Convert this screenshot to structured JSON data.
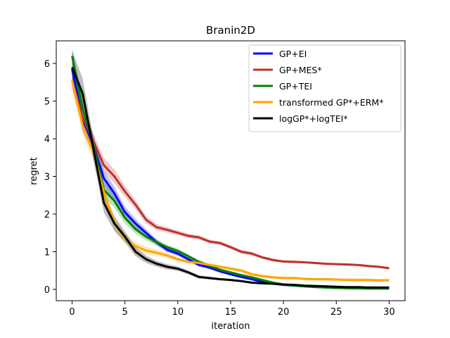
{
  "chart_data": {
    "type": "line",
    "title": "Branin2D",
    "xlabel": "iteration",
    "ylabel": "regret",
    "xlim": [
      -1.5,
      31.5
    ],
    "ylim": [
      -0.3,
      6.6
    ],
    "xticks": [
      0,
      5,
      10,
      15,
      20,
      25,
      30
    ],
    "yticks": [
      0,
      1,
      2,
      3,
      4,
      5,
      6
    ],
    "legend_position": "top-right",
    "grid": false,
    "x": [
      0,
      1,
      2,
      3,
      4,
      5,
      6,
      7,
      8,
      9,
      10,
      11,
      12,
      13,
      14,
      15,
      16,
      17,
      18,
      19,
      20,
      21,
      22,
      23,
      24,
      25,
      26,
      27,
      28,
      29,
      30
    ],
    "series": [
      {
        "name": "GP+EI",
        "color": "#0000ff",
        "values": [
          5.85,
          4.5,
          3.85,
          2.95,
          2.55,
          2.05,
          1.75,
          1.5,
          1.25,
          1.05,
          0.95,
          0.8,
          0.65,
          0.58,
          0.48,
          0.4,
          0.33,
          0.27,
          0.2,
          0.15,
          0.12,
          0.1,
          0.08,
          0.07,
          0.05,
          0.04,
          0.04,
          0.03,
          0.03,
          0.03,
          0.03
        ],
        "band": [
          0.25,
          0.3,
          0.25,
          0.2,
          0.18,
          0.15,
          0.12,
          0.1,
          0.08,
          0.07,
          0.06,
          0.05,
          0.05,
          0.04,
          0.04,
          0.03,
          0.03,
          0.03,
          0.02,
          0.02,
          0.02,
          0.02,
          0.02,
          0.02,
          0.02,
          0.01,
          0.01,
          0.01,
          0.01,
          0.01,
          0.01
        ]
      },
      {
        "name": "GP+MES*",
        "color": "#c0302d",
        "values": [
          5.55,
          4.55,
          3.95,
          3.3,
          3.0,
          2.6,
          2.25,
          1.85,
          1.65,
          1.58,
          1.5,
          1.42,
          1.38,
          1.27,
          1.23,
          1.12,
          1.0,
          0.95,
          0.85,
          0.78,
          0.74,
          0.73,
          0.72,
          0.7,
          0.68,
          0.67,
          0.66,
          0.65,
          0.62,
          0.6,
          0.56
        ],
        "band": [
          0.25,
          0.25,
          0.2,
          0.2,
          0.18,
          0.15,
          0.12,
          0.1,
          0.08,
          0.07,
          0.06,
          0.06,
          0.06,
          0.05,
          0.05,
          0.05,
          0.05,
          0.05,
          0.04,
          0.04,
          0.03,
          0.03,
          0.03,
          0.03,
          0.03,
          0.03,
          0.03,
          0.03,
          0.03,
          0.03,
          0.03
        ]
      },
      {
        "name": "GP+TEI",
        "color": "#008000",
        "values": [
          6.2,
          4.8,
          3.85,
          2.65,
          2.35,
          1.9,
          1.6,
          1.4,
          1.25,
          1.12,
          1.02,
          0.88,
          0.73,
          0.63,
          0.52,
          0.45,
          0.38,
          0.32,
          0.25,
          0.18,
          0.13,
          0.1,
          0.08,
          0.06,
          0.05,
          0.04,
          0.03,
          0.03,
          0.02,
          0.02,
          0.02
        ],
        "band": [
          0.2,
          0.25,
          0.2,
          0.2,
          0.18,
          0.15,
          0.12,
          0.1,
          0.08,
          0.07,
          0.06,
          0.05,
          0.05,
          0.04,
          0.04,
          0.03,
          0.03,
          0.03,
          0.02,
          0.02,
          0.02,
          0.02,
          0.02,
          0.02,
          0.02,
          0.01,
          0.01,
          0.01,
          0.01,
          0.01,
          0.01
        ]
      },
      {
        "name": "transformed GP*+ERM*",
        "color": "#ffa500",
        "values": [
          5.55,
          4.35,
          3.65,
          2.6,
          1.75,
          1.35,
          1.15,
          1.03,
          0.97,
          0.9,
          0.8,
          0.73,
          0.7,
          0.65,
          0.6,
          0.55,
          0.5,
          0.4,
          0.35,
          0.32,
          0.3,
          0.3,
          0.28,
          0.27,
          0.27,
          0.26,
          0.25,
          0.25,
          0.25,
          0.24,
          0.24
        ],
        "band": [
          0.2,
          0.25,
          0.2,
          0.2,
          0.15,
          0.12,
          0.1,
          0.1,
          0.08,
          0.07,
          0.06,
          0.06,
          0.06,
          0.05,
          0.05,
          0.05,
          0.05,
          0.05,
          0.05,
          0.04,
          0.04,
          0.04,
          0.04,
          0.04,
          0.04,
          0.04,
          0.04,
          0.04,
          0.04,
          0.04,
          0.04
        ]
      },
      {
        "name": "logGP*+logTEI*",
        "color": "#000000",
        "values": [
          5.9,
          5.2,
          3.75,
          2.3,
          1.75,
          1.4,
          1.0,
          0.8,
          0.68,
          0.6,
          0.55,
          0.45,
          0.33,
          0.3,
          0.27,
          0.25,
          0.22,
          0.18,
          0.16,
          0.15,
          0.13,
          0.12,
          0.1,
          0.09,
          0.08,
          0.07,
          0.06,
          0.06,
          0.05,
          0.05,
          0.05
        ],
        "band": [
          0.45,
          0.4,
          0.3,
          0.25,
          0.2,
          0.15,
          0.12,
          0.1,
          0.08,
          0.07,
          0.06,
          0.05,
          0.04,
          0.04,
          0.03,
          0.03,
          0.03,
          0.03,
          0.02,
          0.02,
          0.02,
          0.02,
          0.02,
          0.02,
          0.02,
          0.01,
          0.01,
          0.01,
          0.01,
          0.01,
          0.01
        ]
      }
    ]
  }
}
